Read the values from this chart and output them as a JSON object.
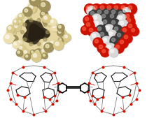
{
  "background_color": "#ffffff",
  "figsize": [
    2.1,
    1.89
  ],
  "dpi": 100,
  "capsule_color_main": "#d9c98a",
  "capsule_color_light": "#ede0b0",
  "capsule_color_shadow": "#a0905a",
  "capsule_cavity_color": "#4a4030",
  "atom_red": "#cc1100",
  "atom_dark": "#3a3a3a",
  "atom_white": "#d8d8d8",
  "wire_gray": "#808080",
  "wire_red": "#cc1100",
  "wire_dark": "#111111"
}
